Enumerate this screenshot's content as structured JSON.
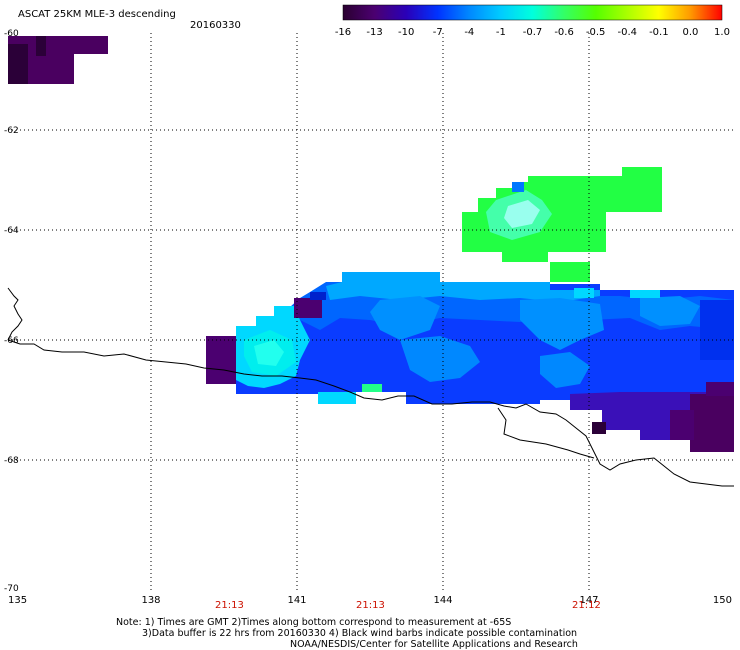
{
  "header": {
    "title": "ASCAT 25KM MLE-3 descending",
    "date": "20160330"
  },
  "colorbar": {
    "labels": [
      "-16",
      "-13",
      "-10",
      "-7",
      "-4",
      "-1",
      "-0.7",
      "-0.6",
      "-0.5",
      "-0.4",
      "-0.1",
      "0.0",
      "1.0"
    ],
    "colors": [
      "#2a0030",
      "#4b0070",
      "#2a00b8",
      "#0033ff",
      "#0088ff",
      "#00ccff",
      "#00ffdd",
      "#33ff66",
      "#55ff00",
      "#aaff00",
      "#ffff00",
      "#ff9900",
      "#ff0000"
    ]
  },
  "axes": {
    "lat_labels": [
      "-60",
      "-62",
      "-64",
      "-66",
      "-68",
      "-70"
    ],
    "lon_labels": [
      "135",
      "138",
      "141",
      "144",
      "147",
      "150"
    ]
  },
  "times": [
    "21:13",
    "21:13",
    "21:12"
  ],
  "notes": {
    "line1": "Note: 1) Times are GMT 2)Times along bottom correspond to measurement at -65S",
    "line2": "3)Data buffer is 22 hrs from 20160330 4) Black wind barbs indicate possible contamination",
    "line3": "NOAA/NESDIS/Center for Satellite Applications and Research"
  }
}
